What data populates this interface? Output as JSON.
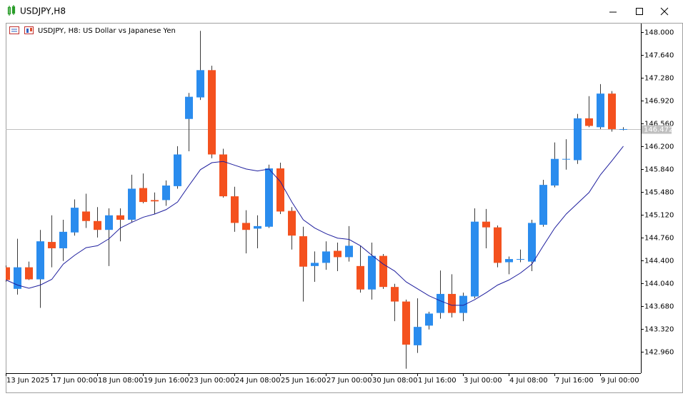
{
  "chart_data": {
    "type": "candlestick",
    "window_title": "USDJPY,H8",
    "title": "USDJPY, H8:  US Dollar vs Japanese Yen",
    "categories": [
      "13 Jun 2025",
      null,
      null,
      null,
      "17 Jun 00:00",
      null,
      null,
      null,
      "18 Jun 08:00",
      null,
      null,
      null,
      "19 Jun 16:00",
      null,
      null,
      null,
      "23 Jun 00:00",
      null,
      null,
      null,
      "24 Jun 08:00",
      null,
      null,
      null,
      "25 Jun 16:00",
      null,
      null,
      null,
      "27 Jun 00:00",
      null,
      null,
      null,
      "30 Jun 08:00",
      null,
      null,
      null,
      "1 Jul 16:00",
      null,
      null,
      null,
      "3 Jul 00:00",
      null,
      null,
      null,
      "4 Jul 08:00",
      null,
      null,
      null,
      "7 Jul 16:00",
      null,
      null,
      null,
      "9 Jul 00:00",
      null,
      null
    ],
    "open": [
      144.29,
      143.95,
      144.29,
      144.1,
      144.69,
      144.59,
      144.84,
      145.17,
      145.02,
      144.88,
      145.11,
      145.04,
      145.54,
      145.35,
      145.35,
      145.57,
      146.63,
      146.97,
      147.4,
      146.07,
      145.41,
      144.99,
      144.9,
      144.93,
      145.85,
      145.18,
      144.78,
      144.31,
      144.36,
      144.55,
      144.45,
      144.31,
      143.94,
      144.47,
      143.98,
      143.75,
      143.06,
      143.37,
      143.57,
      143.87,
      143.57,
      143.83,
      145.01,
      144.92,
      144.37,
      144.41,
      144.38,
      144.96,
      145.58,
      145.99,
      145.98,
      146.64,
      146.5,
      147.03,
      146.47
    ],
    "high": [
      144.32,
      144.74,
      144.38,
      144.88,
      145.11,
      145.04,
      145.36,
      145.45,
      145.24,
      145.22,
      145.22,
      145.75,
      145.77,
      145.47,
      145.66,
      146.2,
      147.04,
      148.02,
      147.47,
      146.16,
      145.56,
      145.19,
      145.11,
      145.91,
      145.94,
      145.24,
      144.93,
      144.54,
      144.7,
      144.68,
      144.94,
      144.63,
      144.68,
      144.5,
      144.03,
      143.78,
      143.8,
      143.59,
      144.24,
      144.18,
      143.89,
      145.22,
      145.21,
      144.95,
      144.46,
      144.57,
      145.04,
      145.67,
      146.26,
      146.31,
      146.71,
      146.99,
      147.18,
      147.07,
      146.5
    ],
    "low": [
      144.06,
      143.86,
      144.09,
      143.65,
      144.29,
      144.39,
      144.79,
      144.91,
      144.76,
      144.31,
      144.7,
      145.0,
      145.3,
      145.13,
      145.26,
      145.53,
      146.12,
      146.93,
      146.01,
      145.39,
      144.85,
      144.51,
      144.59,
      144.91,
      145.13,
      144.57,
      143.75,
      144.06,
      144.25,
      144.23,
      144.38,
      143.89,
      143.78,
      143.95,
      143.44,
      142.69,
      142.94,
      143.31,
      143.48,
      143.5,
      143.44,
      143.8,
      144.59,
      144.29,
      144.18,
      144.37,
      144.23,
      144.93,
      145.55,
      145.83,
      145.92,
      146.5,
      146.47,
      146.43,
      146.45
    ],
    "close": [
      144.09,
      144.29,
      144.1,
      144.7,
      144.59,
      144.85,
      145.23,
      145.02,
      144.88,
      145.11,
      145.04,
      145.53,
      145.32,
      145.33,
      145.58,
      146.07,
      146.98,
      147.4,
      146.07,
      145.41,
      144.99,
      144.88,
      144.94,
      145.85,
      145.17,
      144.79,
      144.3,
      144.36,
      144.54,
      144.45,
      144.63,
      143.94,
      144.47,
      143.98,
      143.75,
      143.07,
      143.35,
      143.56,
      143.87,
      143.57,
      143.84,
      145.01,
      144.92,
      144.36,
      144.42,
      144.42,
      144.99,
      145.59,
      146.0,
      146.0,
      146.64,
      146.52,
      147.03,
      146.47,
      146.47
    ],
    "up_color": "#2a8cee",
    "down_color": "#f4511e",
    "wick_color": "#3a3a3a",
    "moving_average": {
      "color": "#1f1f9e",
      "values": [
        144.09,
        144.01,
        143.96,
        144.01,
        144.1,
        144.34,
        144.48,
        144.6,
        144.63,
        144.74,
        144.91,
        145.0,
        145.08,
        145.13,
        145.2,
        145.32,
        145.58,
        145.83,
        145.94,
        145.96,
        145.9,
        145.84,
        145.81,
        145.84,
        145.64,
        145.32,
        145.04,
        144.91,
        144.82,
        144.75,
        144.73,
        144.63,
        144.48,
        144.34,
        144.23,
        144.06,
        143.95,
        143.84,
        143.76,
        143.69,
        143.69,
        143.78,
        143.89,
        144.01,
        144.09,
        144.2,
        144.34,
        144.63,
        144.91,
        145.13,
        145.3,
        145.47,
        145.75,
        145.97,
        146.2
      ]
    },
    "current_price": 146.472,
    "current_price_color": "#c0c0c0",
    "ylim": [
      142.62,
      148.135
    ],
    "yticks": [
      {
        "value": 148,
        "label": "148.000"
      },
      {
        "value": 147.64,
        "label": "147.640"
      },
      {
        "value": 147.28,
        "label": "147.280"
      },
      {
        "value": 146.92,
        "label": "146.920"
      },
      {
        "value": 146.56,
        "label": "146.560"
      },
      {
        "value": 146.2,
        "label": "146.200"
      },
      {
        "value": 145.84,
        "label": "145.840"
      },
      {
        "value": 145.48,
        "label": "145.480"
      },
      {
        "value": 145.12,
        "label": "145.120"
      },
      {
        "value": 144.76,
        "label": "144.760"
      },
      {
        "value": 144.4,
        "label": "144.400"
      },
      {
        "value": 144.04,
        "label": "144.040"
      },
      {
        "value": 143.68,
        "label": "143.680"
      },
      {
        "value": 143.32,
        "label": "143.320"
      },
      {
        "value": 142.96,
        "label": "142.960"
      }
    ]
  }
}
